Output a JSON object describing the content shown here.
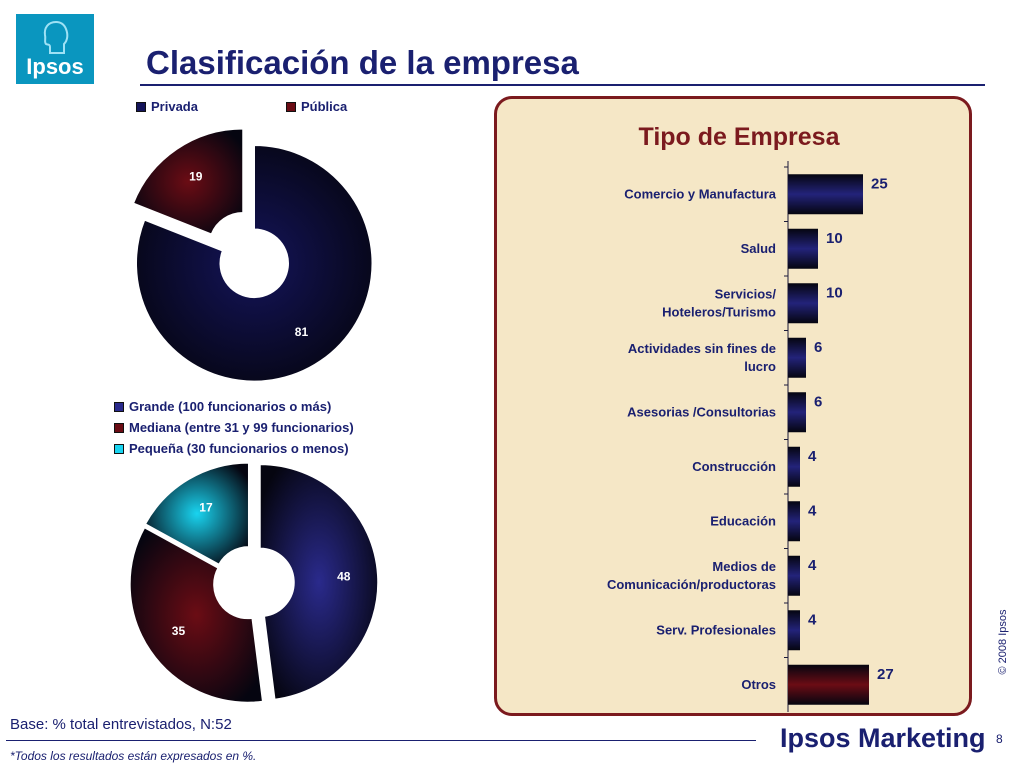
{
  "header": {
    "title": "Clasificación de la empresa",
    "logo_text": "Ipsos"
  },
  "footer": {
    "base": "Base: % total entrevistados, N:52",
    "note": "*Todos los resultados están expresados en %.",
    "brand": "Ipsos Marketing",
    "page": "8",
    "copyright": "© 2008 Ipsos"
  },
  "colors": {
    "navy": "#1a2070",
    "maroon": "#7b1a1e",
    "cyan": "#19d4f0",
    "panel_bg": "#f5e7c6"
  },
  "chart_data": [
    {
      "type": "pie",
      "donut": true,
      "legend_placement": "top",
      "categories": [
        "Privada",
        "Pública"
      ],
      "values": [
        81,
        19
      ],
      "colors": [
        "#14145a",
        "#6b0c14"
      ]
    },
    {
      "type": "pie",
      "donut": true,
      "legend_placement": "top",
      "categories": [
        "Grande (100 funcionarios o más)",
        "Mediana (entre 31 y 99 funcionarios)",
        "Pequeña (30 funcionarios o menos)"
      ],
      "values": [
        48,
        35,
        17
      ],
      "colors": [
        "#2a2a8c",
        "#6b0c14",
        "#19d4f0"
      ]
    },
    {
      "type": "bar",
      "orientation": "horizontal",
      "title": "Tipo de Empresa",
      "categories": [
        [
          "Comercio y Manufactura"
        ],
        [
          "Salud"
        ],
        [
          "Servicios/",
          "Hoteleros/Turismo"
        ],
        [
          "Actividades sin fines de",
          "lucro"
        ],
        [
          "Asesorias /Consultorias"
        ],
        [
          "Construcción"
        ],
        [
          "Educación"
        ],
        [
          "Medios de",
          "Comunicación/productoras"
        ],
        [
          "Serv. Profesionales"
        ],
        [
          "Otros"
        ]
      ],
      "values": [
        25,
        10,
        10,
        6,
        6,
        4,
        4,
        4,
        4,
        27
      ],
      "colors": [
        "#23237a",
        "#23237a",
        "#23237a",
        "#23237a",
        "#23237a",
        "#23237a",
        "#23237a",
        "#23237a",
        "#23237a",
        "#6b0c14"
      ],
      "xlim": [
        0,
        30
      ]
    }
  ]
}
